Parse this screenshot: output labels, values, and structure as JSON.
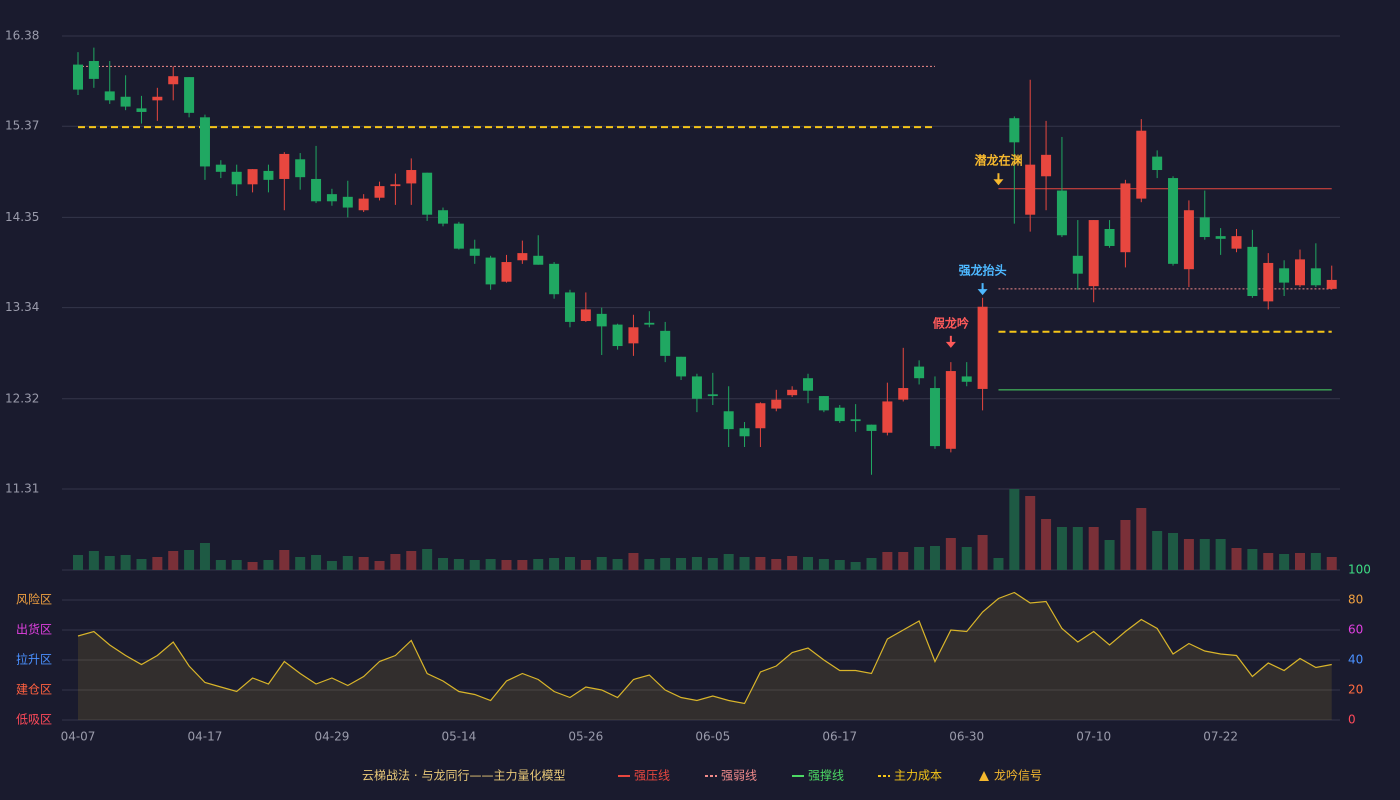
{
  "chart_data": [
    {
      "type": "candlestick",
      "title": "云梯战法 · 与龙同行——主力量化模型",
      "up_color": "#e8473f",
      "down_color": "#20a862",
      "ylim": [
        11.31,
        16.38
      ],
      "yticks": [
        11.31,
        12.32,
        13.34,
        14.35,
        15.37,
        16.38
      ],
      "grid": true,
      "open": [
        16.06,
        16.1,
        15.76,
        15.7,
        15.57,
        15.66,
        15.84,
        15.92,
        15.47,
        14.94,
        14.86,
        14.72,
        14.87,
        14.78,
        15.0,
        14.78,
        14.61,
        14.58,
        14.43,
        14.57,
        14.7,
        14.73,
        14.85,
        14.43,
        14.28,
        14.0,
        13.9,
        13.63,
        13.87,
        13.92,
        13.83,
        13.51,
        13.19,
        13.27,
        13.15,
        12.94,
        13.17,
        13.08,
        12.79,
        12.57,
        12.37,
        12.18,
        11.99,
        11.99,
        12.21,
        12.36,
        12.55,
        12.35,
        12.22,
        12.09,
        12.03,
        11.94,
        12.31,
        12.68,
        12.44,
        11.76,
        12.57,
        12.43,
        null,
        15.46,
        14.38,
        14.81,
        14.65,
        13.92,
        13.58,
        14.22,
        13.96,
        14.56,
        15.03,
        14.79,
        13.77,
        14.35,
        14.14,
        14.0,
        14.02,
        13.41,
        13.78,
        13.59,
        13.78,
        13.55
      ],
      "high": [
        16.2,
        16.25,
        16.1,
        15.94,
        15.71,
        15.8,
        16.04,
        15.92,
        15.5,
        14.99,
        14.94,
        14.89,
        14.94,
        15.08,
        15.07,
        15.15,
        14.67,
        14.76,
        14.61,
        14.75,
        14.84,
        15.01,
        14.85,
        14.46,
        14.3,
        14.1,
        13.92,
        13.93,
        14.09,
        14.15,
        13.85,
        13.54,
        13.51,
        13.34,
        13.16,
        13.26,
        13.3,
        13.18,
        12.79,
        12.6,
        12.61,
        12.46,
        12.06,
        12.28,
        12.42,
        12.46,
        12.6,
        12.35,
        12.25,
        12.26,
        12.03,
        12.5,
        12.89,
        12.75,
        12.57,
        12.73,
        12.73,
        13.45,
        null,
        15.48,
        15.89,
        15.43,
        15.25,
        14.32,
        14.32,
        14.32,
        14.77,
        15.45,
        15.1,
        14.81,
        14.54,
        14.65,
        14.23,
        14.22,
        14.21,
        13.95,
        13.87,
        13.99,
        14.06,
        13.81
      ],
      "low": [
        15.72,
        15.8,
        15.62,
        15.55,
        15.4,
        15.43,
        15.66,
        15.47,
        14.77,
        14.79,
        14.59,
        14.63,
        14.63,
        14.43,
        14.66,
        14.51,
        14.48,
        14.35,
        14.41,
        14.54,
        14.49,
        14.49,
        14.31,
        14.25,
        13.99,
        13.83,
        13.54,
        13.62,
        13.83,
        13.82,
        13.44,
        13.12,
        13.18,
        12.81,
        12.87,
        12.8,
        13.12,
        12.73,
        12.53,
        12.17,
        12.25,
        11.78,
        11.78,
        11.78,
        12.18,
        12.34,
        12.27,
        12.17,
        12.05,
        11.95,
        11.47,
        11.91,
        12.29,
        12.48,
        11.76,
        11.72,
        12.46,
        12.19,
        null,
        14.28,
        14.19,
        14.43,
        14.13,
        13.54,
        13.4,
        14.01,
        13.79,
        14.52,
        14.79,
        13.81,
        13.57,
        14.1,
        13.93,
        13.96,
        13.45,
        13.32,
        13.47,
        13.57,
        13.57,
        13.54
      ],
      "close": [
        15.78,
        15.9,
        15.66,
        15.59,
        15.53,
        15.7,
        15.93,
        15.52,
        14.92,
        14.86,
        14.72,
        14.89,
        14.77,
        15.06,
        14.8,
        14.53,
        14.53,
        14.46,
        14.56,
        14.7,
        14.72,
        14.88,
        14.38,
        14.28,
        14.0,
        13.92,
        13.6,
        13.85,
        13.95,
        13.82,
        13.49,
        13.18,
        13.32,
        13.13,
        12.91,
        13.12,
        13.15,
        12.8,
        12.57,
        12.32,
        12.35,
        11.98,
        11.9,
        12.27,
        12.31,
        12.42,
        12.41,
        12.19,
        12.07,
        12.07,
        11.96,
        12.29,
        12.44,
        12.55,
        11.79,
        12.63,
        12.51,
        13.35,
        null,
        15.19,
        14.94,
        15.05,
        14.15,
        13.72,
        14.32,
        14.03,
        14.73,
        15.32,
        14.88,
        13.83,
        14.43,
        14.13,
        14.11,
        14.14,
        13.47,
        13.84,
        13.62,
        13.88,
        13.59,
        13.65
      ],
      "series": [
        {
          "name": "强压线",
          "color": "#e8473f",
          "style": "solid",
          "values": [
            null,
            null,
            null,
            null,
            null,
            null,
            null,
            null,
            null,
            null,
            null,
            null,
            null,
            null,
            null,
            null,
            null,
            null,
            null,
            null,
            null,
            null,
            null,
            null,
            null,
            null,
            null,
            null,
            null,
            null,
            null,
            null,
            null,
            null,
            null,
            null,
            null,
            null,
            null,
            null,
            null,
            null,
            null,
            null,
            null,
            null,
            null,
            null,
            null,
            null,
            null,
            null,
            null,
            null,
            null,
            null,
            null,
            null,
            14.67,
            14.67,
            14.67,
            14.67,
            14.67,
            14.67,
            14.67,
            14.67,
            14.67,
            14.67,
            14.67,
            14.67,
            14.67,
            14.67,
            14.67,
            14.67,
            14.67,
            14.67,
            14.67,
            14.67,
            14.67,
            14.67
          ]
        },
        {
          "name": "强弱线",
          "color": "#f08a8a",
          "style": "dotted",
          "values": [
            16.04,
            16.04,
            16.04,
            16.04,
            16.04,
            16.04,
            16.04,
            16.04,
            16.04,
            16.04,
            16.04,
            16.04,
            16.04,
            16.04,
            16.04,
            16.04,
            16.04,
            16.04,
            16.04,
            16.04,
            16.04,
            16.04,
            16.04,
            16.04,
            16.04,
            16.04,
            16.04,
            16.04,
            16.04,
            16.04,
            16.04,
            16.04,
            16.04,
            16.04,
            16.04,
            16.04,
            16.04,
            16.04,
            16.04,
            16.04,
            16.04,
            16.04,
            16.04,
            16.04,
            16.04,
            16.04,
            16.04,
            16.04,
            16.04,
            16.04,
            16.04,
            16.04,
            16.04,
            16.04,
            16.04,
            null,
            null,
            null,
            13.55,
            13.55,
            13.55,
            13.55,
            13.55,
            13.55,
            13.55,
            13.55,
            13.55,
            13.55,
            13.55,
            13.55,
            13.55,
            13.55,
            13.55,
            13.55,
            13.55,
            13.55,
            13.55,
            13.55,
            13.55,
            13.55
          ]
        },
        {
          "name": "强撑线",
          "color": "#4cd964",
          "style": "solid",
          "values": [
            null,
            null,
            null,
            null,
            null,
            null,
            null,
            null,
            null,
            null,
            null,
            null,
            null,
            null,
            null,
            null,
            null,
            null,
            null,
            null,
            null,
            null,
            null,
            null,
            null,
            null,
            null,
            null,
            null,
            null,
            null,
            null,
            null,
            null,
            null,
            null,
            null,
            null,
            null,
            null,
            null,
            null,
            null,
            null,
            null,
            null,
            null,
            null,
            null,
            null,
            null,
            null,
            null,
            null,
            null,
            null,
            null,
            null,
            12.42,
            12.42,
            12.42,
            12.42,
            12.42,
            12.42,
            12.42,
            12.42,
            12.42,
            12.42,
            12.42,
            12.42,
            12.42,
            12.42,
            12.42,
            12.42,
            12.42,
            12.42,
            12.42,
            12.42,
            12.42,
            12.42
          ]
        },
        {
          "name": "主力成本",
          "color": "#f5c518",
          "style": "dashed",
          "values": [
            15.36,
            15.36,
            15.36,
            15.36,
            15.36,
            15.36,
            15.36,
            15.36,
            15.36,
            15.36,
            15.36,
            15.36,
            15.36,
            15.36,
            15.36,
            15.36,
            15.36,
            15.36,
            15.36,
            15.36,
            15.36,
            15.36,
            15.36,
            15.36,
            15.36,
            15.36,
            15.36,
            15.36,
            15.36,
            15.36,
            15.36,
            15.36,
            15.36,
            15.36,
            15.36,
            15.36,
            15.36,
            15.36,
            15.36,
            15.36,
            15.36,
            15.36,
            15.36,
            15.36,
            15.36,
            15.36,
            15.36,
            15.36,
            15.36,
            15.36,
            15.36,
            15.36,
            15.36,
            15.36,
            15.36,
            null,
            null,
            null,
            13.07,
            13.07,
            13.07,
            13.07,
            13.07,
            13.07,
            13.07,
            13.07,
            13.07,
            13.07,
            13.07,
            13.07,
            13.07,
            13.07,
            13.07,
            13.07,
            13.07,
            13.07,
            13.07,
            13.07,
            13.07,
            13.07
          ]
        }
      ],
      "signal_name": "龙吟信号",
      "signal_color": "#f5b82e",
      "annotations": [
        {
          "text": "假龙吟",
          "x": 55,
          "y": 12.89,
          "color": "#ff5a5a"
        },
        {
          "text": "强龙抬头",
          "x": 57,
          "y": 13.48,
          "color": "#4db8ff"
        },
        {
          "text": "潜龙在渊",
          "x": 58,
          "y": 14.71,
          "color": "#f5b82e"
        }
      ]
    },
    {
      "type": "bar",
      "up_color": "#7a3038",
      "down_color": "#1e5a44",
      "values": [
        15,
        19,
        14,
        15,
        11,
        13,
        19,
        20,
        27,
        10,
        10,
        8,
        10,
        20,
        13,
        15,
        9,
        14,
        13,
        9,
        16,
        19,
        21,
        12,
        11,
        10,
        11,
        10,
        10,
        11,
        12,
        13,
        10,
        13,
        11,
        17,
        11,
        12,
        12,
        13,
        12,
        16,
        13,
        13,
        11,
        14,
        13,
        11,
        10,
        8,
        12,
        18,
        18,
        23,
        24,
        32,
        23,
        35,
        12,
        81,
        74,
        51,
        43,
        43,
        43,
        30,
        50,
        62,
        39,
        37,
        31,
        31,
        31,
        22,
        21,
        17,
        16,
        17,
        17,
        13
      ]
    },
    {
      "type": "area",
      "color": "#d9b52a",
      "categories": [
        "04-07",
        null,
        null,
        null,
        null,
        null,
        null,
        null,
        "04-17",
        null,
        null,
        null,
        null,
        null,
        null,
        null,
        "04-29",
        null,
        null,
        null,
        null,
        null,
        null,
        null,
        "05-14",
        null,
        null,
        null,
        null,
        null,
        null,
        null,
        "05-26",
        null,
        null,
        null,
        null,
        null,
        null,
        null,
        "06-05",
        null,
        null,
        null,
        null,
        null,
        null,
        null,
        "06-17",
        null,
        null,
        null,
        null,
        null,
        null,
        null,
        "06-30",
        null,
        null,
        null,
        null,
        null,
        null,
        null,
        "07-10",
        null,
        null,
        null,
        null,
        null,
        null,
        null,
        "07-22",
        null,
        null,
        null,
        null,
        null,
        null,
        null
      ],
      "values": [
        56,
        59,
        50,
        43,
        37,
        43,
        52,
        36,
        25,
        22,
        19,
        28,
        24,
        39,
        31,
        24,
        28,
        23,
        29,
        39,
        43,
        53,
        31,
        26,
        19,
        17,
        13,
        26,
        31,
        27,
        19,
        15,
        22,
        20,
        15,
        27,
        30,
        20,
        15,
        13,
        16,
        13,
        11,
        32,
        36,
        45,
        48,
        40,
        33,
        33,
        31,
        54,
        60,
        66,
        39,
        60,
        59,
        72,
        81,
        85,
        78,
        79,
        61,
        52,
        59,
        50,
        59,
        67,
        61,
        44,
        51,
        46,
        44,
        43,
        29,
        38,
        33,
        41,
        35,
        37
      ],
      "ylim": [
        0,
        100
      ],
      "yticks": [
        0,
        20,
        40,
        60,
        80,
        100
      ],
      "ytick_colors": [
        "#ff4a5a",
        "#ff6a40",
        "#4a90ff",
        "#e040e0",
        "#f0a040",
        "#3ddc84"
      ],
      "grid": true,
      "zones": [
        {
          "label": "风险区",
          "value": 80,
          "color": "#f0a040"
        },
        {
          "label": "出货区",
          "value": 60,
          "color": "#e040e0"
        },
        {
          "label": "拉升区",
          "value": 40,
          "color": "#4a90ff"
        },
        {
          "label": "建仓区",
          "value": 20,
          "color": "#ff6040"
        },
        {
          "label": "低吸区",
          "value": 0,
          "color": "#ff4a5a"
        }
      ]
    }
  ]
}
